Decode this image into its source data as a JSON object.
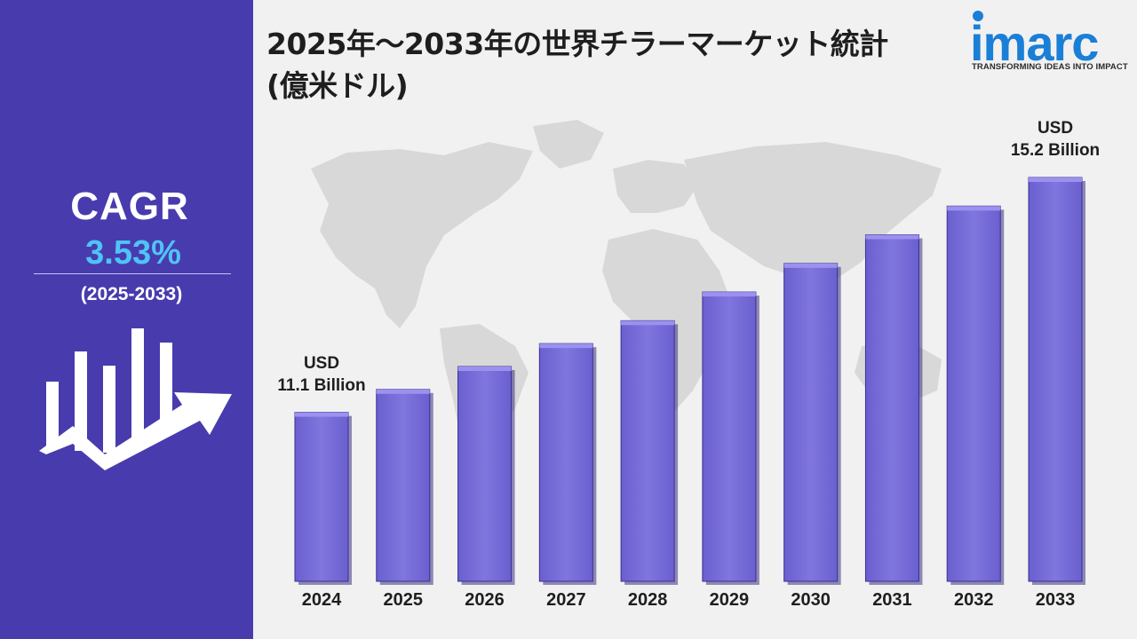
{
  "title": {
    "line1": "2025年～2033年の世界チラーマーケット統計",
    "line2": "(億米ドル)"
  },
  "logo": {
    "word": "imarc",
    "tagline": "TRANSFORMING IDEAS INTO IMPACT",
    "icon": "imarc-logo-icon"
  },
  "cagr": {
    "label": "CAGR",
    "value": "3.53%",
    "period": "(2025-2033)",
    "icon": "growth-chart-arrow-icon"
  },
  "colors": {
    "panel": "#483bae",
    "accent_cyan": "#4fc3f7",
    "bar": "#7c71dc",
    "bar_top": "#9b91ee",
    "bar_shadow": "#3b3180",
    "map": "#d8d8d8",
    "background": "#f1f1f1",
    "logo_blue": "#1a7fd6"
  },
  "chart_data": {
    "type": "bar",
    "categories": [
      "2024",
      "2025",
      "2026",
      "2027",
      "2028",
      "2029",
      "2030",
      "2031",
      "2032",
      "2033"
    ],
    "values": [
      11.1,
      11.5,
      11.9,
      12.3,
      12.7,
      13.2,
      13.7,
      14.2,
      14.7,
      15.2
    ],
    "value_unit": "USD Billion",
    "annotations": [
      {
        "category": "2024",
        "line1": "USD",
        "line2": "11.1 Billion"
      },
      {
        "category": "2033",
        "line1": "USD",
        "line2": "15.2 Billion"
      }
    ],
    "title": "2025年～2033年の世界チラーマーケット統計 (億米ドル)",
    "xlabel": "",
    "ylabel": "",
    "ylim": [
      8.15,
      15.7
    ],
    "grid": false,
    "legend": "none"
  }
}
